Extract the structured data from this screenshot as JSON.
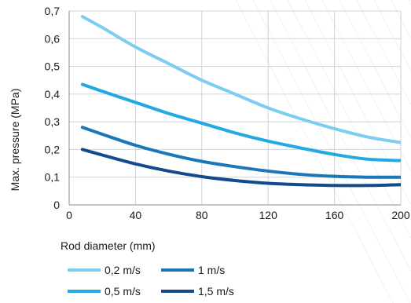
{
  "chart_data": {
    "type": "line",
    "xlabel": "Rod diameter  (mm)",
    "ylabel": "Max. pressure  (MPa)",
    "xlim": [
      0,
      200
    ],
    "ylim": [
      0,
      0.7
    ],
    "x_ticks": [
      "0",
      "40",
      "80",
      "120",
      "160",
      "200"
    ],
    "x_tick_values": [
      0,
      40,
      80,
      120,
      160,
      200
    ],
    "y_ticks": [
      "0",
      "0,1",
      "0,2",
      "0,3",
      "0,4",
      "0,5",
      "0,6",
      "0,7"
    ],
    "y_tick_values": [
      0,
      0.1,
      0.2,
      0.3,
      0.4,
      0.5,
      0.6,
      0.7
    ],
    "grid": "vertical and horizontal",
    "legend_position": "bottom-left",
    "series": [
      {
        "name": "0,2 m/s",
        "color": "#7ccdf0",
        "x": [
          8,
          20,
          40,
          60,
          80,
          100,
          120,
          140,
          160,
          180,
          200
        ],
        "y": [
          0.68,
          0.64,
          0.57,
          0.51,
          0.45,
          0.4,
          0.35,
          0.31,
          0.275,
          0.245,
          0.225
        ]
      },
      {
        "name": "0,5 m/s",
        "color": "#22a9e1",
        "x": [
          8,
          20,
          40,
          60,
          80,
          100,
          120,
          140,
          160,
          180,
          200
        ],
        "y": [
          0.435,
          0.41,
          0.37,
          0.33,
          0.295,
          0.26,
          0.23,
          0.205,
          0.182,
          0.165,
          0.16
        ]
      },
      {
        "name": "1 m/s",
        "color": "#1a77b8",
        "x": [
          8,
          20,
          40,
          60,
          80,
          100,
          120,
          140,
          160,
          180,
          200
        ],
        "y": [
          0.28,
          0.255,
          0.215,
          0.183,
          0.157,
          0.138,
          0.122,
          0.11,
          0.103,
          0.1,
          0.1
        ]
      },
      {
        "name": "1,5 m/s",
        "color": "#134a8c",
        "x": [
          8,
          20,
          40,
          60,
          80,
          100,
          120,
          140,
          160,
          180,
          200
        ],
        "y": [
          0.2,
          0.18,
          0.148,
          0.122,
          0.102,
          0.088,
          0.078,
          0.073,
          0.07,
          0.07,
          0.073
        ]
      }
    ]
  }
}
